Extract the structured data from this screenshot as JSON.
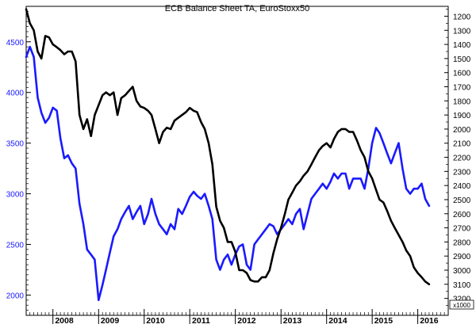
{
  "chart_data": {
    "type": "line",
    "title": "ECB Balance Sheet TA, EuroStoxx50",
    "left_axis": {
      "scale": "linear",
      "range": [
        1800,
        4850
      ],
      "ticks": [
        2000,
        2500,
        3000,
        3500,
        4000,
        4500
      ],
      "tick_labels": [
        "2000",
        "2500",
        "3000",
        "3500",
        "4000",
        "4500"
      ],
      "color": "#1a1aff"
    },
    "right_axis": {
      "scale": "inverted",
      "range": [
        1130,
        3320
      ],
      "ticks": [
        1200,
        1300,
        1400,
        1500,
        1600,
        1700,
        1800,
        1900,
        2000,
        2100,
        2200,
        2300,
        2400,
        2500,
        2600,
        2700,
        2800,
        2900,
        3000,
        3100,
        3200
      ],
      "tick_labels": [
        "1200",
        "1300",
        "1400",
        "1500",
        "1600",
        "1700",
        "1800",
        "1900",
        "2000",
        "2100",
        "2200",
        "2300",
        "2400",
        "2500",
        "2600",
        "2700",
        "2800",
        "2900",
        "3000",
        "3100",
        "3200"
      ],
      "unit_label": "x1000",
      "color": "#000000"
    },
    "x_axis": {
      "range": [
        "2007-06-01",
        "2016-09-01"
      ],
      "year_labels": [
        "2008",
        "2009",
        "2010",
        "2011",
        "2012",
        "2013",
        "2014",
        "2015",
        "2016"
      ]
    },
    "grid": false,
    "legend": "none",
    "series": [
      {
        "color": "#1a1aff",
        "axis": "left",
        "x": [
          "2007-06-01",
          "2007-07-01",
          "2007-08-01",
          "2007-09-01",
          "2007-10-01",
          "2007-11-01",
          "2007-12-01",
          "2008-01-01",
          "2008-02-01",
          "2008-03-01",
          "2008-04-01",
          "2008-05-01",
          "2008-06-01",
          "2008-07-01",
          "2008-08-01",
          "2008-09-01",
          "2008-10-01",
          "2008-11-01",
          "2008-12-01",
          "2009-01-01",
          "2009-02-01",
          "2009-03-01",
          "2009-04-01",
          "2009-05-01",
          "2009-06-01",
          "2009-07-01",
          "2009-08-01",
          "2009-09-01",
          "2009-10-01",
          "2009-11-01",
          "2009-12-01",
          "2010-01-01",
          "2010-02-01",
          "2010-03-01",
          "2010-04-01",
          "2010-05-01",
          "2010-06-01",
          "2010-07-01",
          "2010-08-01",
          "2010-09-01",
          "2010-10-01",
          "2010-11-01",
          "2010-12-01",
          "2011-01-01",
          "2011-02-01",
          "2011-03-01",
          "2011-04-01",
          "2011-05-01",
          "2011-06-01",
          "2011-07-01",
          "2011-08-01",
          "2011-09-01",
          "2011-10-01",
          "2011-11-01",
          "2011-12-01",
          "2012-01-01",
          "2012-02-01",
          "2012-03-01",
          "2012-04-01",
          "2012-05-01",
          "2012-06-01",
          "2012-07-01",
          "2012-08-01",
          "2012-09-01",
          "2012-10-01",
          "2012-11-01",
          "2012-12-01",
          "2013-01-01",
          "2013-02-01",
          "2013-03-01",
          "2013-04-01",
          "2013-05-01",
          "2013-06-01",
          "2013-07-01",
          "2013-08-01",
          "2013-09-01",
          "2013-10-01",
          "2013-11-01",
          "2013-12-01",
          "2014-01-01",
          "2014-02-01",
          "2014-03-01",
          "2014-04-01",
          "2014-05-01",
          "2014-06-01",
          "2014-07-01",
          "2014-08-01",
          "2014-09-01",
          "2014-10-01",
          "2014-11-01",
          "2014-12-01",
          "2015-01-01",
          "2015-02-01",
          "2015-03-01",
          "2015-04-01",
          "2015-05-01",
          "2015-06-01",
          "2015-07-01",
          "2015-08-01",
          "2015-09-01",
          "2015-10-01",
          "2015-11-01",
          "2015-12-01",
          "2016-01-01",
          "2016-02-01",
          "2016-03-01",
          "2016-04-01"
        ],
        "y": [
          4350,
          4450,
          4350,
          3950,
          3800,
          3700,
          3750,
          3850,
          3820,
          3550,
          3350,
          3380,
          3300,
          3250,
          2900,
          2700,
          2450,
          2400,
          2350,
          1950,
          2100,
          2250,
          2420,
          2580,
          2650,
          2750,
          2820,
          2880,
          2750,
          2820,
          2880,
          2700,
          2800,
          2950,
          2800,
          2700,
          2650,
          2600,
          2700,
          2650,
          2850,
          2800,
          2880,
          2970,
          3020,
          2980,
          2950,
          3000,
          2880,
          2750,
          2350,
          2250,
          2350,
          2400,
          2300,
          2400,
          2480,
          2500,
          2300,
          2250,
          2500,
          2550,
          2600,
          2650,
          2700,
          2680,
          2600,
          2650,
          2700,
          2750,
          2700,
          2800,
          2850,
          2650,
          2800,
          2950,
          3000,
          3050,
          3100,
          3050,
          3120,
          3200,
          3150,
          3200,
          3200,
          3050,
          3150,
          3150,
          3150,
          3050,
          3250,
          3500,
          3650,
          3600,
          3500,
          3400,
          3300,
          3400,
          3500,
          3250,
          3050,
          3000,
          3050,
          3050,
          3100,
          2950,
          2880
        ]
      },
      {
        "color": "#000000",
        "axis": "right",
        "x": [
          "2007-06-01",
          "2007-07-01",
          "2007-08-01",
          "2007-09-01",
          "2007-10-01",
          "2007-11-01",
          "2007-12-01",
          "2008-01-01",
          "2008-02-01",
          "2008-03-01",
          "2008-04-01",
          "2008-05-01",
          "2008-06-01",
          "2008-07-01",
          "2008-08-01",
          "2008-09-01",
          "2008-10-01",
          "2008-11-01",
          "2008-12-01",
          "2009-01-01",
          "2009-02-01",
          "2009-03-01",
          "2009-04-01",
          "2009-05-01",
          "2009-06-01",
          "2009-07-01",
          "2009-08-01",
          "2009-09-01",
          "2009-10-01",
          "2009-11-01",
          "2009-12-01",
          "2010-01-01",
          "2010-02-01",
          "2010-03-01",
          "2010-04-01",
          "2010-05-01",
          "2010-06-01",
          "2010-07-01",
          "2010-08-01",
          "2010-09-01",
          "2010-10-01",
          "2010-11-01",
          "2010-12-01",
          "2011-01-01",
          "2011-02-01",
          "2011-03-01",
          "2011-04-01",
          "2011-05-01",
          "2011-06-01",
          "2011-07-01",
          "2011-08-01",
          "2011-09-01",
          "2011-10-01",
          "2011-11-01",
          "2011-12-01",
          "2012-01-01",
          "2012-02-01",
          "2012-03-01",
          "2012-04-01",
          "2012-05-01",
          "2012-06-01",
          "2012-07-01",
          "2012-08-01",
          "2012-09-01",
          "2012-10-01",
          "2012-11-01",
          "2012-12-01",
          "2013-01-01",
          "2013-02-01",
          "2013-03-01",
          "2013-04-01",
          "2013-05-01",
          "2013-06-01",
          "2013-07-01",
          "2013-08-01",
          "2013-09-01",
          "2013-10-01",
          "2013-11-01",
          "2013-12-01",
          "2014-01-01",
          "2014-02-01",
          "2014-03-01",
          "2014-04-01",
          "2014-05-01",
          "2014-06-01",
          "2014-07-01",
          "2014-08-01",
          "2014-09-01",
          "2014-10-01",
          "2014-11-01",
          "2014-12-01",
          "2015-01-01",
          "2015-02-01",
          "2015-03-01",
          "2015-04-01",
          "2015-05-01",
          "2015-06-01",
          "2015-07-01",
          "2015-08-01",
          "2015-09-01",
          "2015-10-01",
          "2015-11-01",
          "2015-12-01",
          "2016-01-01",
          "2016-02-01",
          "2016-03-01",
          "2016-04-01"
        ],
        "y": [
          1150,
          1250,
          1300,
          1450,
          1500,
          1340,
          1350,
          1400,
          1420,
          1440,
          1470,
          1450,
          1450,
          1520,
          1900,
          2000,
          1930,
          2050,
          1900,
          1830,
          1760,
          1740,
          1760,
          1740,
          1900,
          1780,
          1760,
          1730,
          1700,
          1800,
          1840,
          1850,
          1870,
          1900,
          2000,
          2100,
          2020,
          1990,
          2000,
          1940,
          1920,
          1900,
          1880,
          1850,
          1870,
          1880,
          1950,
          2000,
          2100,
          2250,
          2550,
          2650,
          2700,
          2800,
          2800,
          2870,
          3000,
          3000,
          3020,
          3070,
          3080,
          3080,
          3050,
          3050,
          3000,
          2880,
          2780,
          2700,
          2600,
          2500,
          2450,
          2400,
          2370,
          2330,
          2300,
          2250,
          2200,
          2150,
          2120,
          2100,
          2130,
          2070,
          2020,
          2000,
          2000,
          2020,
          2020,
          2080,
          2150,
          2200,
          2300,
          2350,
          2430,
          2500,
          2520,
          2580,
          2650,
          2700,
          2750,
          2800,
          2860,
          2900,
          2980,
          3020,
          3050,
          3080,
          3100
        ]
      }
    ]
  }
}
